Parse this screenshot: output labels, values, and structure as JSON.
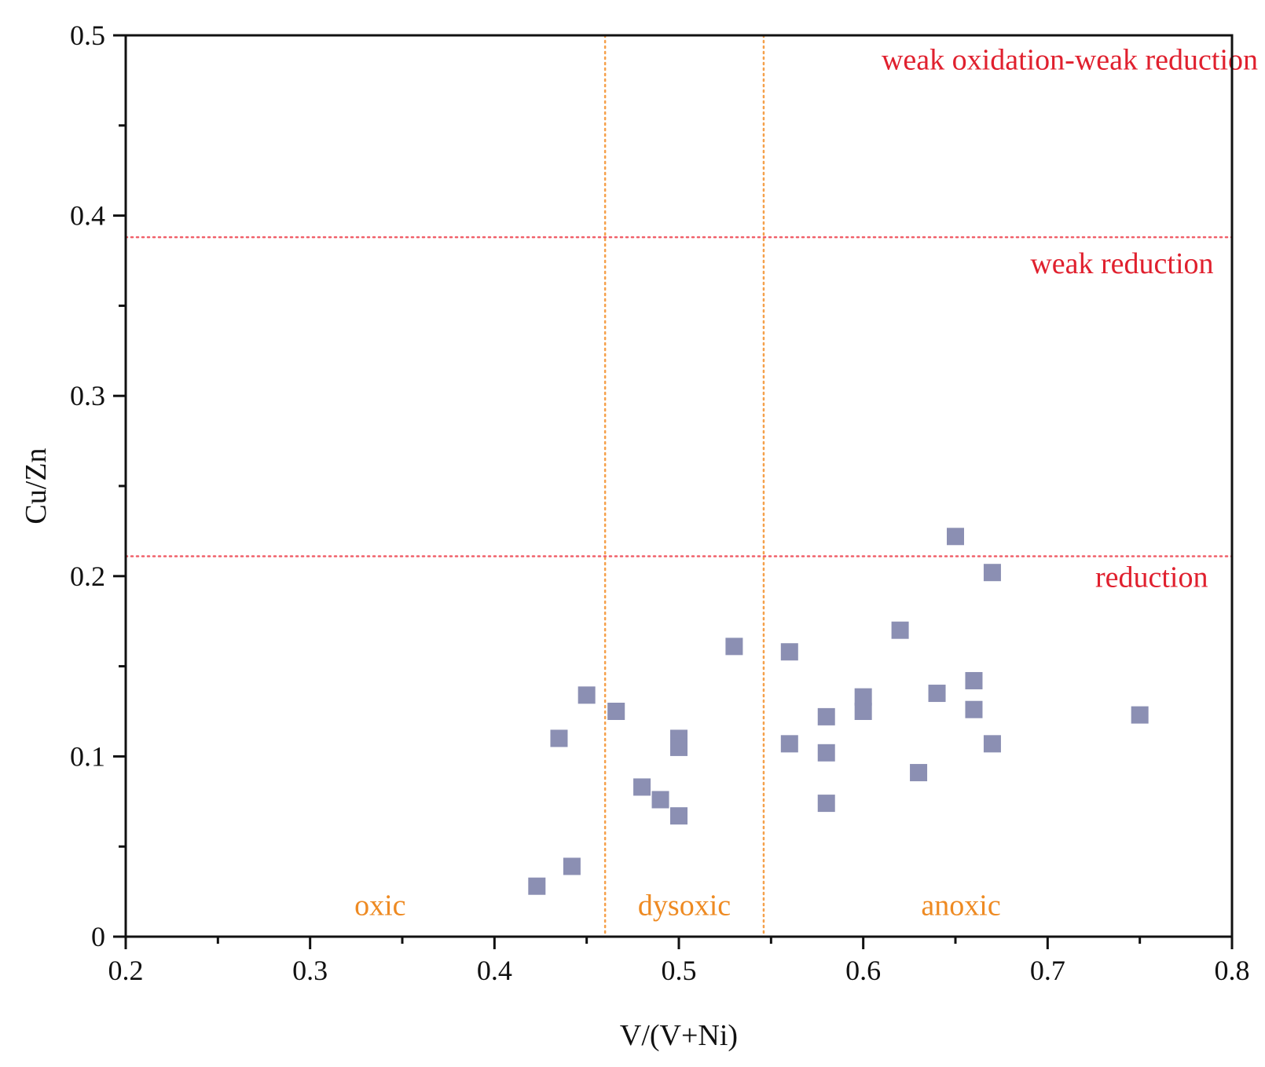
{
  "chart_data": {
    "type": "scatter",
    "title": "",
    "xlabel": "V/(V+Ni)",
    "ylabel": "Cu/Zn",
    "xlim": [
      0.2,
      0.8
    ],
    "ylim": [
      0,
      0.5
    ],
    "x_ticks": [
      0.2,
      0.3,
      0.4,
      0.5,
      0.6,
      0.7,
      0.8
    ],
    "x_tick_labels": [
      "0.2",
      "0.3",
      "0.4",
      "0.5",
      "0.6",
      "0.7",
      "0.8"
    ],
    "y_ticks": [
      0,
      0.1,
      0.2,
      0.3,
      0.4,
      0.5
    ],
    "y_tick_labels": [
      "0",
      "0.1",
      "0.2",
      "0.3",
      "0.4",
      "0.5"
    ],
    "grid": false,
    "marker": "square",
    "marker_color": "#8b8fb3",
    "series": [
      {
        "name": "samples",
        "points": [
          {
            "x": 0.423,
            "y": 0.028
          },
          {
            "x": 0.435,
            "y": 0.11
          },
          {
            "x": 0.442,
            "y": 0.039
          },
          {
            "x": 0.45,
            "y": 0.134
          },
          {
            "x": 0.466,
            "y": 0.125
          },
          {
            "x": 0.48,
            "y": 0.083
          },
          {
            "x": 0.49,
            "y": 0.076
          },
          {
            "x": 0.5,
            "y": 0.11
          },
          {
            "x": 0.5,
            "y": 0.105
          },
          {
            "x": 0.5,
            "y": 0.067
          },
          {
            "x": 0.53,
            "y": 0.161
          },
          {
            "x": 0.56,
            "y": 0.158
          },
          {
            "x": 0.56,
            "y": 0.107
          },
          {
            "x": 0.58,
            "y": 0.122
          },
          {
            "x": 0.58,
            "y": 0.102
          },
          {
            "x": 0.58,
            "y": 0.074
          },
          {
            "x": 0.6,
            "y": 0.133
          },
          {
            "x": 0.6,
            "y": 0.125
          },
          {
            "x": 0.62,
            "y": 0.17
          },
          {
            "x": 0.63,
            "y": 0.091
          },
          {
            "x": 0.64,
            "y": 0.135
          },
          {
            "x": 0.65,
            "y": 0.222
          },
          {
            "x": 0.66,
            "y": 0.142
          },
          {
            "x": 0.66,
            "y": 0.126
          },
          {
            "x": 0.67,
            "y": 0.202
          },
          {
            "x": 0.67,
            "y": 0.107
          },
          {
            "x": 0.75,
            "y": 0.123
          }
        ]
      }
    ],
    "reference_lines": {
      "vertical": [
        {
          "x": 0.46,
          "color": "#f5a04a"
        },
        {
          "x": 0.546,
          "color": "#f5a04a"
        }
      ],
      "horizontal": [
        {
          "y": 0.388,
          "color": "#f0606a"
        },
        {
          "y": 0.211,
          "color": "#f0606a"
        }
      ]
    },
    "region_labels": [
      {
        "text": "weak oxidation-weak reduction",
        "x": 0.712,
        "y": 0.481,
        "anchor": "middle",
        "color": "#e0202e"
      },
      {
        "text": "weak reduction",
        "x": 0.79,
        "y": 0.368,
        "anchor": "end",
        "color": "#e0202e"
      },
      {
        "text": "reduction",
        "x": 0.787,
        "y": 0.194,
        "anchor": "end",
        "color": "#e0202e"
      },
      {
        "text": "oxic",
        "x": 0.338,
        "y": 0.012,
        "anchor": "middle",
        "color": "#ee8a22"
      },
      {
        "text": "dysoxic",
        "x": 0.503,
        "y": 0.012,
        "anchor": "middle",
        "color": "#ee8a22"
      },
      {
        "text": "anoxic",
        "x": 0.653,
        "y": 0.012,
        "anchor": "middle",
        "color": "#ee8a22"
      }
    ]
  }
}
